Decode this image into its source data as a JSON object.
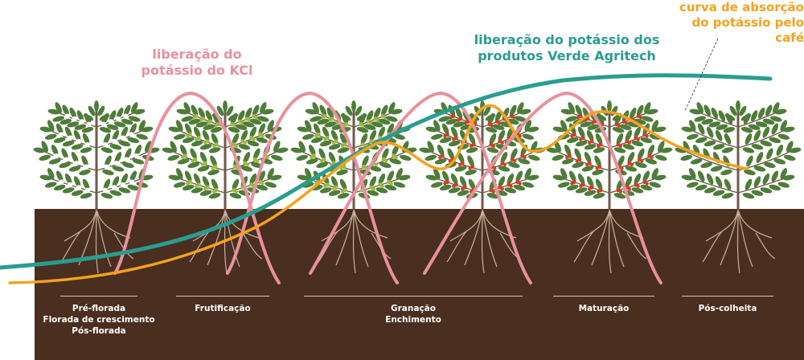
{
  "labels": {
    "kcl": [
      "liberação do",
      "potássio do KCl"
    ],
    "verde": [
      "liberação do potássio dos",
      "produtos Verde Agritech"
    ],
    "absorption": [
      "curva de absorção",
      "do potássio pelo café"
    ]
  },
  "stages": [
    {
      "lines": [
        "Pré-florada",
        "Florada de crescimento",
        "Pós-florada"
      ]
    },
    {
      "lines": [
        "Frutificação"
      ]
    },
    {
      "lines": [
        "Granação",
        "Enchimento"
      ]
    },
    {
      "lines": [
        "Maturação"
      ]
    },
    {
      "lines": [
        "Pós-colheita"
      ]
    }
  ],
  "colors": {
    "soil": "#4a2e1f",
    "kcl": "#e8919c",
    "verde": "#2a9d8f",
    "absorption": "#f4a21f",
    "leaf": "#4e7d3a",
    "flower": "#ffffff",
    "green_fruit": "#9dbb3a",
    "red_fruit": "#d63b24"
  }
}
